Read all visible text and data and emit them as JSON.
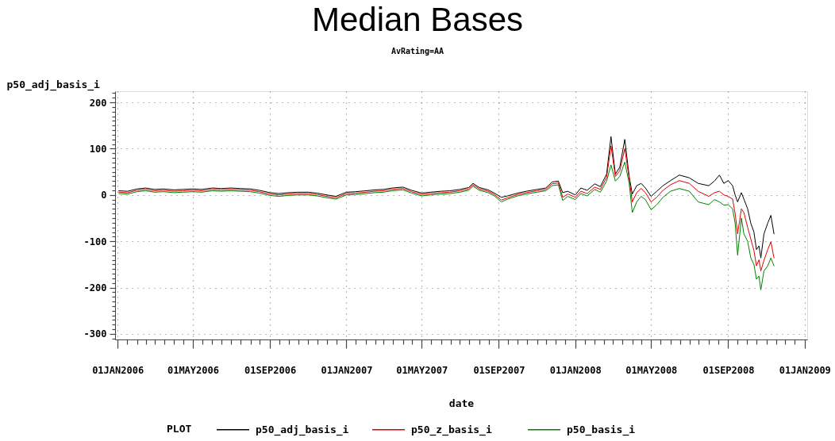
{
  "chart_data": {
    "type": "line",
    "title": "Median Bases",
    "subtitle": "AvRating=AA",
    "xlabel": "date",
    "ylabel": "p50_adj_basis_i",
    "legend_title": "PLOT",
    "x": [
      "2006-01-03",
      "2006-01-17",
      "2006-02-01",
      "2006-02-15",
      "2006-03-01",
      "2006-03-15",
      "2006-04-01",
      "2006-04-15",
      "2006-05-01",
      "2006-05-15",
      "2006-06-01",
      "2006-06-15",
      "2006-07-01",
      "2006-07-15",
      "2006-08-01",
      "2006-08-15",
      "2006-09-01",
      "2006-09-15",
      "2006-10-01",
      "2006-10-15",
      "2006-11-01",
      "2006-11-15",
      "2006-12-01",
      "2006-12-15",
      "2007-01-01",
      "2007-01-15",
      "2007-02-01",
      "2007-02-15",
      "2007-03-01",
      "2007-03-15",
      "2007-04-01",
      "2007-04-15",
      "2007-05-01",
      "2007-05-15",
      "2007-06-01",
      "2007-06-15",
      "2007-07-01",
      "2007-07-15",
      "2007-07-22",
      "2007-08-01",
      "2007-08-15",
      "2007-08-25",
      "2007-09-05",
      "2007-09-15",
      "2007-10-01",
      "2007-10-15",
      "2007-11-01",
      "2007-11-15",
      "2007-11-25",
      "2007-12-05",
      "2007-12-12",
      "2007-12-20",
      "2008-01-01",
      "2008-01-10",
      "2008-01-20",
      "2008-02-01",
      "2008-02-10",
      "2008-02-20",
      "2008-02-27",
      "2008-03-05",
      "2008-03-12",
      "2008-03-20",
      "2008-03-27",
      "2008-04-01",
      "2008-04-08",
      "2008-04-15",
      "2008-04-22",
      "2008-05-01",
      "2008-05-10",
      "2008-05-20",
      "2008-06-01",
      "2008-06-15",
      "2008-07-01",
      "2008-07-15",
      "2008-08-01",
      "2008-08-10",
      "2008-08-18",
      "2008-08-25",
      "2008-09-01",
      "2008-09-08",
      "2008-09-12",
      "2008-09-16",
      "2008-09-22",
      "2008-09-26",
      "2008-10-02",
      "2008-10-07",
      "2008-10-12",
      "2008-10-16",
      "2008-10-20",
      "2008-10-23",
      "2008-10-28",
      "2008-11-03",
      "2008-11-08",
      "2008-11-13"
    ],
    "series": [
      {
        "name": "p50_adj_basis_i",
        "color": "#000000",
        "values": [
          9,
          8,
          13,
          15,
          12,
          13,
          11,
          12,
          13,
          12,
          15,
          14,
          15,
          14,
          13,
          10,
          5,
          3,
          5,
          6,
          6,
          4,
          0,
          -3,
          6,
          7,
          9,
          11,
          12,
          15,
          17,
          10,
          4,
          6,
          8,
          9,
          12,
          16,
          25,
          16,
          11,
          4,
          -5,
          -2,
          4,
          8,
          12,
          15,
          28,
          30,
          5,
          8,
          0,
          15,
          10,
          24,
          18,
          45,
          126,
          45,
          60,
          120,
          40,
          2,
          20,
          25,
          15,
          -3,
          8,
          20,
          31,
          43,
          37,
          25,
          20,
          30,
          43,
          25,
          31,
          20,
          0,
          -15,
          5,
          -9,
          -30,
          -61,
          -80,
          -118,
          -110,
          -136,
          -84,
          -61,
          -44,
          -84
        ]
      },
      {
        "name": "p50_z_basis_i",
        "color": "#e00000",
        "values": [
          6,
          5,
          10,
          12,
          9,
          10,
          8,
          9,
          10,
          9,
          12,
          11,
          12,
          11,
          10,
          7,
          2,
          0,
          2,
          3,
          3,
          1,
          -3,
          -6,
          3,
          4,
          6,
          8,
          9,
          12,
          14,
          7,
          1,
          3,
          5,
          6,
          9,
          13,
          22,
          13,
          8,
          1,
          -11,
          -6,
          1,
          5,
          9,
          12,
          24,
          26,
          -5,
          2,
          -5,
          8,
          3,
          17,
          12,
          38,
          106,
          40,
          52,
          100,
          35,
          -15,
          5,
          14,
          5,
          -15,
          -5,
          10,
          22,
          31,
          25,
          8,
          -3,
          5,
          8,
          0,
          -3,
          -9,
          -40,
          -84,
          -30,
          -38,
          -70,
          -95,
          -120,
          -153,
          -140,
          -164,
          -141,
          -118,
          -101,
          -136
        ]
      },
      {
        "name": "p50_basis_i",
        "color": "#008000",
        "values": [
          3,
          2,
          7,
          9,
          6,
          7,
          5,
          6,
          7,
          6,
          9,
          8,
          9,
          8,
          7,
          4,
          -1,
          -3,
          -1,
          0,
          0,
          -2,
          -6,
          -9,
          0,
          1,
          3,
          5,
          6,
          9,
          11,
          4,
          -2,
          0,
          2,
          3,
          6,
          10,
          19,
          10,
          5,
          -2,
          -15,
          -9,
          -2,
          2,
          6,
          9,
          20,
          22,
          -12,
          -3,
          -10,
          3,
          -2,
          12,
          6,
          30,
          65,
          30,
          40,
          71,
          25,
          -38,
          -15,
          -3,
          -10,
          -32,
          -21,
          -5,
          8,
          14,
          8,
          -15,
          -21,
          -10,
          -15,
          -22,
          -21,
          -30,
          -61,
          -130,
          -50,
          -84,
          -100,
          -136,
          -150,
          -182,
          -175,
          -205,
          -164,
          -153,
          -136,
          -153
        ]
      }
    ],
    "xlim": [
      "2005-12-28",
      "2009-01-05"
    ],
    "xticks": [
      {
        "value": "2006-01-01",
        "label": "01JAN2006"
      },
      {
        "value": "2006-01-16",
        "label": null
      },
      {
        "value": "2006-02-01",
        "label": null
      },
      {
        "value": "2006-02-16",
        "label": null
      },
      {
        "value": "2006-03-01",
        "label": null
      },
      {
        "value": "2006-03-16",
        "label": null
      },
      {
        "value": "2006-04-01",
        "label": null
      },
      {
        "value": "2006-04-16",
        "label": null
      },
      {
        "value": "2006-05-01",
        "label": "01MAY2006"
      },
      {
        "value": "2006-05-16",
        "label": null
      },
      {
        "value": "2006-06-01",
        "label": null
      },
      {
        "value": "2006-06-16",
        "label": null
      },
      {
        "value": "2006-07-01",
        "label": null
      },
      {
        "value": "2006-07-16",
        "label": null
      },
      {
        "value": "2006-08-01",
        "label": null
      },
      {
        "value": "2006-08-16",
        "label": null
      },
      {
        "value": "2006-09-01",
        "label": "01SEP2006"
      },
      {
        "value": "2006-09-16",
        "label": null
      },
      {
        "value": "2006-10-01",
        "label": null
      },
      {
        "value": "2006-10-16",
        "label": null
      },
      {
        "value": "2006-11-01",
        "label": null
      },
      {
        "value": "2006-11-16",
        "label": null
      },
      {
        "value": "2006-12-01",
        "label": null
      },
      {
        "value": "2006-12-16",
        "label": null
      },
      {
        "value": "2007-01-01",
        "label": "01JAN2007"
      },
      {
        "value": "2007-01-16",
        "label": null
      },
      {
        "value": "2007-02-01",
        "label": null
      },
      {
        "value": "2007-02-16",
        "label": null
      },
      {
        "value": "2007-03-01",
        "label": null
      },
      {
        "value": "2007-03-16",
        "label": null
      },
      {
        "value": "2007-04-01",
        "label": null
      },
      {
        "value": "2007-04-16",
        "label": null
      },
      {
        "value": "2007-05-01",
        "label": "01MAY2007"
      },
      {
        "value": "2007-05-16",
        "label": null
      },
      {
        "value": "2007-06-01",
        "label": null
      },
      {
        "value": "2007-06-16",
        "label": null
      },
      {
        "value": "2007-07-01",
        "label": null
      },
      {
        "value": "2007-07-16",
        "label": null
      },
      {
        "value": "2007-08-01",
        "label": null
      },
      {
        "value": "2007-08-16",
        "label": null
      },
      {
        "value": "2007-09-01",
        "label": "01SEP2007"
      },
      {
        "value": "2007-09-16",
        "label": null
      },
      {
        "value": "2007-10-01",
        "label": null
      },
      {
        "value": "2007-10-16",
        "label": null
      },
      {
        "value": "2007-11-01",
        "label": null
      },
      {
        "value": "2007-11-16",
        "label": null
      },
      {
        "value": "2007-12-01",
        "label": null
      },
      {
        "value": "2007-12-16",
        "label": null
      },
      {
        "value": "2008-01-01",
        "label": "01JAN2008"
      },
      {
        "value": "2008-01-16",
        "label": null
      },
      {
        "value": "2008-02-01",
        "label": null
      },
      {
        "value": "2008-02-16",
        "label": null
      },
      {
        "value": "2008-03-01",
        "label": null
      },
      {
        "value": "2008-03-16",
        "label": null
      },
      {
        "value": "2008-04-01",
        "label": null
      },
      {
        "value": "2008-04-16",
        "label": null
      },
      {
        "value": "2008-05-01",
        "label": "01MAY2008"
      },
      {
        "value": "2008-05-16",
        "label": null
      },
      {
        "value": "2008-06-01",
        "label": null
      },
      {
        "value": "2008-06-16",
        "label": null
      },
      {
        "value": "2008-07-01",
        "label": null
      },
      {
        "value": "2008-07-16",
        "label": null
      },
      {
        "value": "2008-08-01",
        "label": null
      },
      {
        "value": "2008-08-16",
        "label": null
      },
      {
        "value": "2008-09-01",
        "label": "01SEP2008"
      },
      {
        "value": "2008-09-16",
        "label": null
      },
      {
        "value": "2008-10-01",
        "label": null
      },
      {
        "value": "2008-10-16",
        "label": null
      },
      {
        "value": "2008-11-01",
        "label": null
      },
      {
        "value": "2008-11-16",
        "label": null
      },
      {
        "value": "2008-12-01",
        "label": null
      },
      {
        "value": "2008-12-16",
        "label": null
      },
      {
        "value": "2009-01-01",
        "label": "01JAN2009"
      }
    ],
    "ylim": [
      -312,
      224
    ],
    "yticks": [
      {
        "value": -310,
        "label": null
      },
      -300,
      {
        "value": -290,
        "label": null
      },
      {
        "value": -280,
        "label": null
      },
      {
        "value": -270,
        "label": null
      },
      {
        "value": -260,
        "label": null
      },
      {
        "value": -250,
        "label": null
      },
      {
        "value": -240,
        "label": null
      },
      {
        "value": -230,
        "label": null
      },
      {
        "value": -220,
        "label": null
      },
      {
        "value": -210,
        "label": null
      },
      -200,
      {
        "value": -190,
        "label": null
      },
      {
        "value": -180,
        "label": null
      },
      {
        "value": -170,
        "label": null
      },
      {
        "value": -160,
        "label": null
      },
      {
        "value": -150,
        "label": null
      },
      {
        "value": -140,
        "label": null
      },
      {
        "value": -130,
        "label": null
      },
      {
        "value": -120,
        "label": null
      },
      {
        "value": -110,
        "label": null
      },
      -100,
      {
        "value": -90,
        "label": null
      },
      {
        "value": -80,
        "label": null
      },
      {
        "value": -70,
        "label": null
      },
      {
        "value": -60,
        "label": null
      },
      {
        "value": -50,
        "label": null
      },
      {
        "value": -40,
        "label": null
      },
      {
        "value": -30,
        "label": null
      },
      {
        "value": -20,
        "label": null
      },
      {
        "value": -10,
        "label": null
      },
      0,
      {
        "value": 10,
        "label": null
      },
      {
        "value": 20,
        "label": null
      },
      {
        "value": 30,
        "label": null
      },
      {
        "value": 40,
        "label": null
      },
      {
        "value": 50,
        "label": null
      },
      {
        "value": 60,
        "label": null
      },
      {
        "value": 70,
        "label": null
      },
      {
        "value": 80,
        "label": null
      },
      {
        "value": 90,
        "label": null
      },
      100,
      {
        "value": 110,
        "label": null
      },
      {
        "value": 120,
        "label": null
      },
      {
        "value": 130,
        "label": null
      },
      {
        "value": 140,
        "label": null
      },
      {
        "value": 150,
        "label": null
      },
      {
        "value": 160,
        "label": null
      },
      {
        "value": 170,
        "label": null
      },
      {
        "value": 180,
        "label": null
      },
      {
        "value": 190,
        "label": null
      },
      200,
      {
        "value": 210,
        "label": null
      },
      {
        "value": 220,
        "label": null
      }
    ],
    "grid": true,
    "legend": "bottom",
    "marker": "none",
    "line_style": "solid"
  }
}
